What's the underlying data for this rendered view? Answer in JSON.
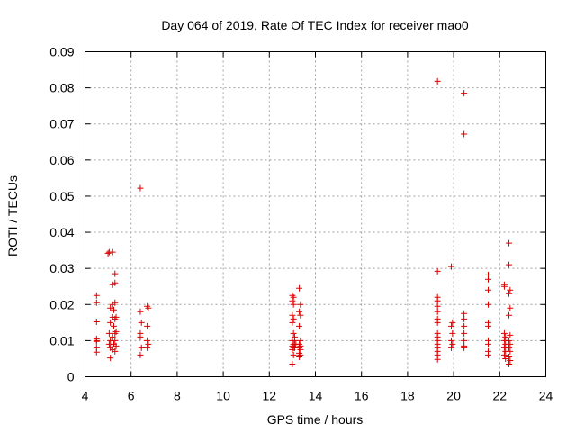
{
  "chart_data": {
    "type": "scatter",
    "title": "Day 064 of 2019, Rate Of TEC Index for receiver mao0",
    "xlabel": "GPS time / hours",
    "ylabel": "ROTI / TECUs",
    "xlim": [
      4,
      24
    ],
    "ylim": [
      0,
      0.09
    ],
    "xticks": [
      4,
      6,
      8,
      10,
      12,
      14,
      16,
      18,
      20,
      22,
      24
    ],
    "xtick_labels": [
      "4",
      "6",
      "8",
      "10",
      "12",
      "14",
      "16",
      "18",
      "20",
      "22",
      "24"
    ],
    "yticks": [
      0,
      0.01,
      0.02,
      0.03,
      0.04,
      0.05,
      0.06,
      0.07,
      0.08,
      0.09
    ],
    "ytick_labels": [
      "0",
      "0.01",
      "0.02",
      "0.03",
      "0.04",
      "0.05",
      "0.06",
      "0.07",
      "0.08",
      "0.09"
    ],
    "grid": true,
    "marker": "+",
    "marker_color": "#dd0000",
    "series": [
      {
        "name": "ROTI",
        "points": [
          [
            4.5,
            0.0225
          ],
          [
            4.5,
            0.0205
          ],
          [
            4.5,
            0.0152
          ],
          [
            4.5,
            0.0105
          ],
          [
            4.5,
            0.01
          ],
          [
            4.5,
            0.0098
          ],
          [
            4.5,
            0.008
          ],
          [
            4.5,
            0.0068
          ],
          [
            5.0,
            0.0342
          ],
          [
            5.05,
            0.0345
          ],
          [
            5.1,
            0.019
          ],
          [
            5.1,
            0.015
          ],
          [
            5.05,
            0.012
          ],
          [
            5.1,
            0.01
          ],
          [
            5.05,
            0.009
          ],
          [
            5.1,
            0.008
          ],
          [
            5.1,
            0.0052
          ],
          [
            5.2,
            0.0345
          ],
          [
            5.2,
            0.0255
          ],
          [
            5.2,
            0.02
          ],
          [
            5.25,
            0.0185
          ],
          [
            5.2,
            0.0165
          ],
          [
            5.25,
            0.014
          ],
          [
            5.2,
            0.011
          ],
          [
            5.25,
            0.009
          ],
          [
            5.2,
            0.0075
          ],
          [
            5.3,
            0.0285
          ],
          [
            5.3,
            0.026
          ],
          [
            5.3,
            0.0205
          ],
          [
            5.35,
            0.0165
          ],
          [
            5.3,
            0.016
          ],
          [
            5.35,
            0.0125
          ],
          [
            5.3,
            0.012
          ],
          [
            5.3,
            0.01
          ],
          [
            5.35,
            0.0085
          ],
          [
            5.3,
            0.007
          ],
          [
            6.4,
            0.0522
          ],
          [
            6.4,
            0.018
          ],
          [
            6.45,
            0.015
          ],
          [
            6.4,
            0.012
          ],
          [
            6.4,
            0.011
          ],
          [
            6.45,
            0.008
          ],
          [
            6.4,
            0.006
          ],
          [
            6.7,
            0.0195
          ],
          [
            6.75,
            0.019
          ],
          [
            6.7,
            0.014
          ],
          [
            6.7,
            0.01
          ],
          [
            6.75,
            0.009
          ],
          [
            6.7,
            0.008
          ],
          [
            13.0,
            0.0225
          ],
          [
            13.05,
            0.022
          ],
          [
            13.0,
            0.021
          ],
          [
            13.05,
            0.02
          ],
          [
            13.0,
            0.017
          ],
          [
            13.05,
            0.016
          ],
          [
            13.0,
            0.015
          ],
          [
            13.05,
            0.012
          ],
          [
            13.0,
            0.01
          ],
          [
            13.05,
            0.009
          ],
          [
            13.0,
            0.0085
          ],
          [
            13.05,
            0.008
          ],
          [
            13.0,
            0.0075
          ],
          [
            13.05,
            0.006
          ],
          [
            13.0,
            0.0035
          ],
          [
            13.1,
            0.011
          ],
          [
            13.1,
            0.01
          ],
          [
            13.15,
            0.009
          ],
          [
            13.1,
            0.008
          ],
          [
            13.3,
            0.0245
          ],
          [
            13.35,
            0.02
          ],
          [
            13.3,
            0.018
          ],
          [
            13.35,
            0.017
          ],
          [
            13.3,
            0.014
          ],
          [
            13.35,
            0.01
          ],
          [
            13.3,
            0.009
          ],
          [
            13.35,
            0.0085
          ],
          [
            13.3,
            0.008
          ],
          [
            13.35,
            0.0075
          ],
          [
            13.3,
            0.0065
          ],
          [
            13.35,
            0.006
          ],
          [
            13.3,
            0.0055
          ],
          [
            19.3,
            0.0818
          ],
          [
            19.3,
            0.0292
          ],
          [
            19.3,
            0.022
          ],
          [
            19.3,
            0.021
          ],
          [
            19.3,
            0.0195
          ],
          [
            19.3,
            0.018
          ],
          [
            19.3,
            0.016
          ],
          [
            19.3,
            0.015
          ],
          [
            19.3,
            0.012
          ],
          [
            19.3,
            0.011
          ],
          [
            19.3,
            0.01
          ],
          [
            19.3,
            0.009
          ],
          [
            19.3,
            0.008
          ],
          [
            19.3,
            0.007
          ],
          [
            19.3,
            0.006
          ],
          [
            19.3,
            0.0048
          ],
          [
            19.9,
            0.0305
          ],
          [
            19.95,
            0.015
          ],
          [
            19.9,
            0.014
          ],
          [
            19.95,
            0.012
          ],
          [
            19.9,
            0.01
          ],
          [
            19.95,
            0.009
          ],
          [
            19.9,
            0.008
          ],
          [
            20.45,
            0.0785
          ],
          [
            20.45,
            0.0672
          ],
          [
            20.45,
            0.0175
          ],
          [
            20.45,
            0.016
          ],
          [
            20.45,
            0.014
          ],
          [
            20.45,
            0.012
          ],
          [
            20.45,
            0.01
          ],
          [
            20.45,
            0.0085
          ],
          [
            20.45,
            0.008
          ],
          [
            21.5,
            0.0282
          ],
          [
            21.5,
            0.027
          ],
          [
            21.5,
            0.024
          ],
          [
            21.5,
            0.02
          ],
          [
            21.5,
            0.015
          ],
          [
            21.5,
            0.014
          ],
          [
            21.5,
            0.01
          ],
          [
            21.5,
            0.009
          ],
          [
            21.5,
            0.007
          ],
          [
            21.5,
            0.006
          ],
          [
            22.2,
            0.0255
          ],
          [
            22.2,
            0.025
          ],
          [
            22.2,
            0.012
          ],
          [
            22.25,
            0.011
          ],
          [
            22.2,
            0.01
          ],
          [
            22.25,
            0.009
          ],
          [
            22.2,
            0.008
          ],
          [
            22.25,
            0.007
          ],
          [
            22.2,
            0.006
          ],
          [
            22.25,
            0.005
          ],
          [
            22.4,
            0.037
          ],
          [
            22.4,
            0.031
          ],
          [
            22.45,
            0.024
          ],
          [
            22.4,
            0.023
          ],
          [
            22.45,
            0.019
          ],
          [
            22.4,
            0.017
          ],
          [
            22.45,
            0.0115
          ],
          [
            22.4,
            0.01
          ],
          [
            22.45,
            0.009
          ],
          [
            22.4,
            0.008
          ],
          [
            22.45,
            0.007
          ],
          [
            22.4,
            0.0055
          ],
          [
            22.45,
            0.0045
          ],
          [
            22.4,
            0.0035
          ]
        ]
      }
    ]
  }
}
